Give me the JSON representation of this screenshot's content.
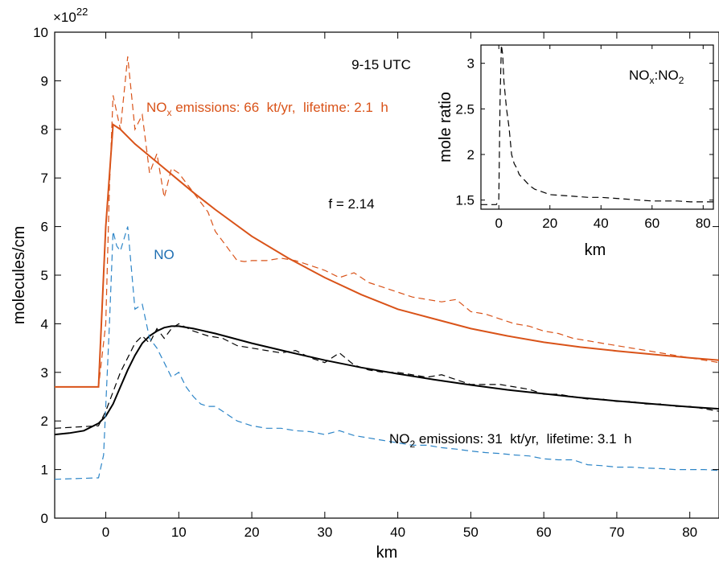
{
  "chart_data": [
    {
      "type": "line",
      "xlabel": "km",
      "ylabel": "molecules/cm",
      "xlim": [
        -7,
        84
      ],
      "ylim": [
        0,
        10
      ],
      "y_multiplier": "×10",
      "y_multiplier_exp": "22",
      "xticks": [
        0,
        10,
        20,
        30,
        40,
        50,
        60,
        70,
        80
      ],
      "yticks": [
        0,
        1,
        2,
        3,
        4,
        5,
        6,
        7,
        8,
        9,
        10
      ],
      "grid": false,
      "annotations": {
        "time": "9-15 UTC",
        "f_label": "f = 2.14",
        "no_label": "NO",
        "nox_pre": "NO",
        "nox_sub": "x",
        "nox_post": " emissions: 66  kt/yr,  lifetime: 2.1  h",
        "no2_pre": "NO",
        "no2_sub": "2",
        "no2_post": " emissions: 31  kt/yr,  lifetime: 3.1  h"
      },
      "colors": {
        "nox": "#D95319",
        "no2": "#000000",
        "no": "#2E86C8"
      },
      "series": [
        {
          "key": "nox_obs",
          "style": "dashed",
          "x": [
            -7,
            -1,
            0,
            0.5,
            1,
            2,
            3,
            4,
            5,
            6,
            7,
            8,
            9,
            10,
            11,
            12,
            13,
            14,
            15,
            16,
            17,
            18,
            19,
            20,
            22,
            24,
            26,
            28,
            30,
            32,
            34,
            36,
            38,
            40,
            42,
            44,
            46,
            48,
            50,
            52,
            54,
            56,
            58,
            60,
            62,
            64,
            66,
            68,
            70,
            72,
            74,
            76,
            78,
            80,
            82,
            84
          ],
          "y": [
            2.7,
            2.7,
            4.0,
            6.8,
            8.7,
            8.0,
            9.5,
            8.0,
            8.3,
            7.1,
            7.5,
            6.6,
            7.2,
            7.1,
            6.9,
            6.7,
            6.5,
            6.3,
            5.9,
            5.7,
            5.5,
            5.3,
            5.28,
            5.3,
            5.3,
            5.35,
            5.3,
            5.2,
            5.1,
            4.95,
            5.05,
            4.85,
            4.75,
            4.65,
            4.55,
            4.5,
            4.45,
            4.5,
            4.25,
            4.2,
            4.1,
            4.0,
            3.95,
            3.85,
            3.8,
            3.7,
            3.65,
            3.6,
            3.55,
            3.5,
            3.45,
            3.4,
            3.35,
            3.3,
            3.25,
            3.2
          ]
        },
        {
          "key": "nox_fit",
          "style": "solid",
          "x": [
            -7,
            -1,
            0,
            1,
            2,
            4,
            6,
            8,
            10,
            12,
            15,
            20,
            25,
            30,
            35,
            40,
            45,
            50,
            55,
            60,
            65,
            70,
            75,
            80,
            84
          ],
          "y": [
            2.7,
            2.7,
            6.0,
            8.1,
            8.0,
            7.7,
            7.45,
            7.2,
            6.95,
            6.7,
            6.35,
            5.8,
            5.35,
            4.95,
            4.6,
            4.3,
            4.1,
            3.9,
            3.75,
            3.62,
            3.52,
            3.44,
            3.37,
            3.3,
            3.25
          ]
        },
        {
          "key": "no2_obs",
          "style": "dashed",
          "x": [
            -7,
            -1,
            0,
            1,
            2,
            3,
            4,
            5,
            6,
            7,
            8,
            9,
            10,
            12,
            14,
            16,
            18,
            20,
            22,
            24,
            26,
            28,
            30,
            32,
            34,
            36,
            38,
            40,
            42,
            44,
            46,
            48,
            50,
            52,
            54,
            56,
            58,
            60,
            62,
            64,
            66,
            68,
            70,
            72,
            74,
            76,
            78,
            80,
            82,
            84
          ],
          "y": [
            1.85,
            1.9,
            2.2,
            2.6,
            3.0,
            3.3,
            3.6,
            3.75,
            3.6,
            3.9,
            3.7,
            3.9,
            4.0,
            3.85,
            3.75,
            3.7,
            3.55,
            3.5,
            3.45,
            3.4,
            3.45,
            3.3,
            3.2,
            3.4,
            3.15,
            3.05,
            3.0,
            3.0,
            2.95,
            2.9,
            2.95,
            2.85,
            2.75,
            2.75,
            2.75,
            2.7,
            2.65,
            2.55,
            2.55,
            2.5,
            2.45,
            2.45,
            2.4,
            2.4,
            2.35,
            2.35,
            2.3,
            2.3,
            2.25,
            2.2
          ]
        },
        {
          "key": "no2_fit",
          "style": "solid",
          "x": [
            -7,
            -5,
            -3,
            -1,
            0,
            1,
            2,
            3,
            4,
            5,
            6,
            7,
            8,
            9,
            10,
            12,
            15,
            20,
            25,
            30,
            35,
            40,
            45,
            50,
            55,
            60,
            65,
            70,
            75,
            80,
            84
          ],
          "y": [
            1.72,
            1.75,
            1.8,
            1.95,
            2.1,
            2.35,
            2.7,
            3.05,
            3.35,
            3.6,
            3.75,
            3.85,
            3.92,
            3.95,
            3.95,
            3.9,
            3.8,
            3.6,
            3.42,
            3.25,
            3.1,
            2.97,
            2.85,
            2.74,
            2.64,
            2.56,
            2.48,
            2.41,
            2.35,
            2.29,
            2.25
          ]
        },
        {
          "key": "no_obs",
          "style": "dashed",
          "x": [
            -7,
            -1,
            -0.3,
            0,
            0.5,
            1,
            1.5,
            2,
            3,
            4,
            5,
            6,
            7,
            8,
            9,
            10,
            11,
            12,
            13,
            14,
            15,
            16,
            17,
            18,
            19,
            20,
            22,
            24,
            26,
            28,
            30,
            32,
            34,
            36,
            38,
            40,
            42,
            44,
            46,
            48,
            50,
            52,
            54,
            56,
            58,
            60,
            62,
            64,
            66,
            68,
            70,
            72,
            74,
            76,
            78,
            80,
            82,
            84
          ],
          "y": [
            0.8,
            0.83,
            1.3,
            2.3,
            4.0,
            5.9,
            5.6,
            5.5,
            6.0,
            4.3,
            4.4,
            3.7,
            3.5,
            3.2,
            2.9,
            3.0,
            2.7,
            2.5,
            2.35,
            2.3,
            2.3,
            2.2,
            2.1,
            2.0,
            1.95,
            1.9,
            1.85,
            1.85,
            1.8,
            1.78,
            1.72,
            1.8,
            1.7,
            1.65,
            1.6,
            1.55,
            1.5,
            1.5,
            1.45,
            1.42,
            1.38,
            1.35,
            1.33,
            1.3,
            1.28,
            1.22,
            1.2,
            1.2,
            1.1,
            1.08,
            1.05,
            1.05,
            1.03,
            1.02,
            1.0,
            1.0,
            1.0,
            0.98
          ]
        }
      ]
    },
    {
      "type": "line",
      "inset": true,
      "xlabel": "km",
      "ylabel": "mole ratio",
      "xlim": [
        -7,
        84
      ],
      "ylim": [
        1.4,
        3.2
      ],
      "xticks": [
        0,
        20,
        40,
        60,
        80
      ],
      "yticks": [
        1.5,
        2,
        2.5,
        3
      ],
      "ytick_labels": [
        "1.5",
        "2",
        "2.5",
        "3"
      ],
      "grid": false,
      "label_pre": "NO",
      "label_sub1": "x",
      "label_mid": ":NO",
      "label_sub2": "2",
      "series": [
        {
          "key": "ratio",
          "style": "dashed",
          "x": [
            -7,
            -1,
            0,
            0.5,
            1,
            1.5,
            2,
            3,
            4,
            5,
            6,
            7,
            8,
            10,
            12,
            14,
            16,
            18,
            20,
            25,
            30,
            35,
            40,
            45,
            50,
            55,
            60,
            65,
            70,
            75,
            80,
            84
          ],
          "y": [
            1.45,
            1.45,
            1.5,
            2.6,
            3.2,
            3.1,
            2.8,
            2.5,
            2.3,
            2.0,
            1.9,
            1.85,
            1.78,
            1.72,
            1.66,
            1.62,
            1.6,
            1.58,
            1.56,
            1.55,
            1.54,
            1.53,
            1.53,
            1.52,
            1.51,
            1.5,
            1.49,
            1.49,
            1.49,
            1.48,
            1.48,
            1.48
          ]
        }
      ]
    }
  ]
}
